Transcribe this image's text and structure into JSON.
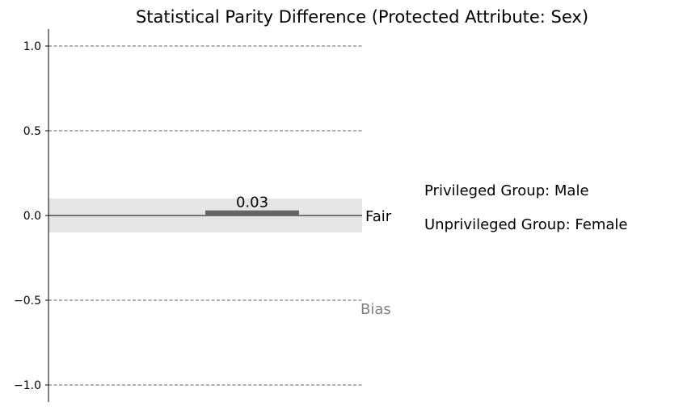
{
  "chart_data": {
    "type": "bar",
    "title": "Statistical Parity Difference (Protected Attribute: Sex)",
    "xlabel": "",
    "ylabel": "",
    "ylim": [
      -1.1,
      1.1
    ],
    "yticks": [
      1.0,
      0.5,
      0.0,
      -0.5,
      -1.0
    ],
    "ytick_labels": [
      "1.0",
      "0.5",
      "0.0",
      "−0.5",
      "−1.0"
    ],
    "grid": "dashed horizontal at ticks",
    "fair_band": [
      -0.1,
      0.1
    ],
    "values": [
      0.03
    ],
    "data_labels": [
      "0.03"
    ],
    "annotations": {
      "fair": "Fair",
      "bias": "Bias",
      "privileged": "Privileged Group: Male",
      "unprivileged": "Unprivileged Group: Female"
    },
    "colors": {
      "bar": "#666666",
      "band": "#e5e5e5",
      "grid": "#808080",
      "bias_text": "#808080"
    }
  }
}
